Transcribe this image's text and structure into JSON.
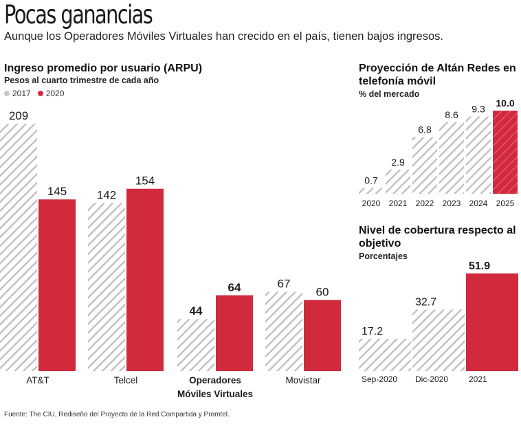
{
  "header": {
    "title": "Pocas ganancias",
    "subtitle": "Aunque los Operadores Móviles Virtuales han crecido en el país, tienen bajos ingresos."
  },
  "colors": {
    "c2017": "#c8c8c8",
    "c2020": "#d12a3c",
    "hatch": "#bdbdbd"
  },
  "chart_data": [
    {
      "type": "bar",
      "title": "Ingreso promedio por usuario (ARPU)",
      "subtitle": "Pesos al cuarto trimestre de cada año",
      "legend": [
        "2017",
        "2020"
      ],
      "categories": [
        "AT&T",
        "Telcel",
        "Operadores Móviles Virtuales",
        "Movistar"
      ],
      "category_lines": [
        [
          "AT&T"
        ],
        [
          "Telcel"
        ],
        [
          "Operadores",
          "Móviles Virtuales"
        ],
        [
          "Movistar"
        ]
      ],
      "series": [
        {
          "name": "2017",
          "values": [
            209,
            142,
            44,
            67
          ]
        },
        {
          "name": "2020",
          "values": [
            145,
            154,
            64,
            60
          ]
        }
      ],
      "ylim": [
        0,
        209
      ]
    },
    {
      "type": "bar",
      "title": "Proyección de Altán Redes en telefonía móvil",
      "subtitle": "% del mercado",
      "categories": [
        "2020",
        "2021",
        "2022",
        "2023",
        "2024",
        "2025"
      ],
      "values": [
        0.7,
        2.9,
        6.8,
        8.6,
        9.3,
        10.0
      ],
      "labels": [
        "0.7",
        "2.9",
        "6.8",
        "8.6",
        "9.3",
        "10.0"
      ],
      "ylim": [
        0,
        10.0
      ]
    },
    {
      "type": "bar",
      "title": "Nivel de cobertura respecto al objetivo",
      "subtitle": "Porcentajes",
      "categories": [
        "Sep-2020",
        "Dic-2020",
        "2021"
      ],
      "values": [
        17.2,
        32.7,
        51.9
      ],
      "labels": [
        "17.2",
        "32.7",
        "51.9"
      ],
      "ylim": [
        0,
        51.9
      ]
    }
  ],
  "footer": "Fuente: The CIU, Rediseño del Proyecto de la Red Compartida y Promtel."
}
